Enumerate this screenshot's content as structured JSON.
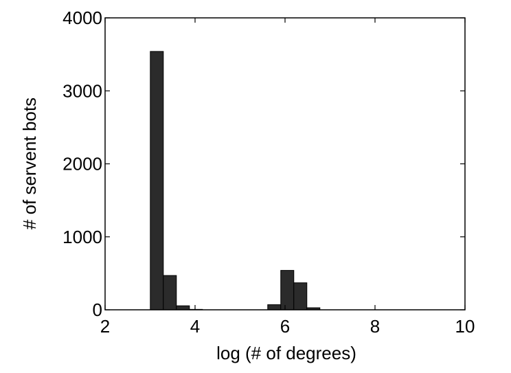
{
  "chart_data": {
    "type": "bar",
    "title": "",
    "xlabel": "log (# of degrees)",
    "ylabel": "# of servent bots",
    "xlim": [
      2,
      10
    ],
    "ylim": [
      0,
      4000
    ],
    "xticks": [
      2,
      4,
      6,
      8,
      10
    ],
    "yticks": [
      0,
      1000,
      2000,
      3000,
      4000
    ],
    "grid": false,
    "bar_color": "#2b2b2b",
    "bin_width": 0.29,
    "bins": [
      {
        "x": 3.15,
        "value": 3540
      },
      {
        "x": 3.44,
        "value": 470
      },
      {
        "x": 3.73,
        "value": 55
      },
      {
        "x": 4.02,
        "value": 6
      },
      {
        "x": 5.76,
        "value": 70
      },
      {
        "x": 6.05,
        "value": 540
      },
      {
        "x": 6.34,
        "value": 370
      },
      {
        "x": 6.63,
        "value": 28
      }
    ]
  }
}
